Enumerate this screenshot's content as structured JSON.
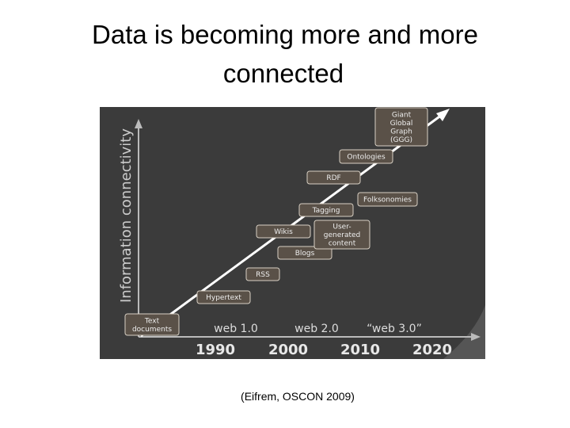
{
  "title": [
    "Data is becoming more and more",
    "connected"
  ],
  "diagram": {
    "y_axis_label": "Information connectivity",
    "nodes": [
      {
        "label": [
          "Text",
          "documents"
        ]
      },
      {
        "label": [
          "Hypertext"
        ]
      },
      {
        "label": [
          "RSS"
        ]
      },
      {
        "label": [
          "Blogs"
        ]
      },
      {
        "label": [
          "Wikis"
        ]
      },
      {
        "label": [
          "User-",
          "generated",
          "content"
        ]
      },
      {
        "label": [
          "Tagging"
        ]
      },
      {
        "label": [
          "Folksonomies"
        ]
      },
      {
        "label": [
          "RDF"
        ]
      },
      {
        "label": [
          "Ontologies"
        ]
      },
      {
        "label": [
          "Giant",
          "Global",
          "Graph",
          "(GGG)"
        ]
      }
    ],
    "eras": [
      "web 1.0",
      "web 2.0",
      "“web 3.0”"
    ],
    "years": [
      "1990",
      "2000",
      "2010",
      "2020"
    ]
  },
  "caption": "(Eifrem, OSCON 2009)"
}
